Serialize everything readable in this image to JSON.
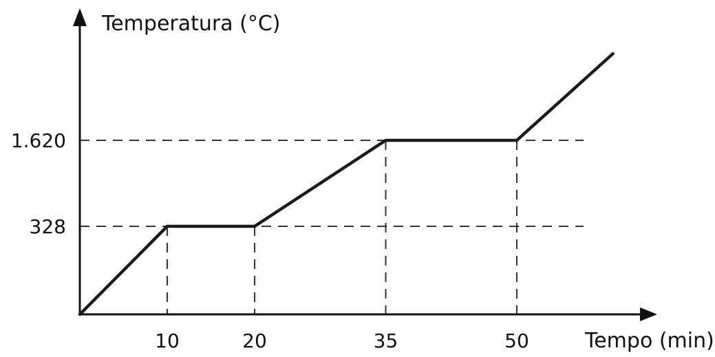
{
  "chart_data": {
    "type": "line",
    "ylabel": "Temperatura (°C)",
    "xlabel": "Tempo (min)",
    "x_ticks": [
      "10",
      "20",
      "35",
      "50"
    ],
    "y_ticks": [
      "328",
      "1.620"
    ],
    "points": [
      {
        "x": 0,
        "y": 0
      },
      {
        "x": 10,
        "y": 328
      },
      {
        "x": 20,
        "y": 328
      },
      {
        "x": 35,
        "y": 1620
      },
      {
        "x": 50,
        "y": 1620
      },
      {
        "x": 61,
        "y": 2553
      }
    ],
    "reference_lines": {
      "horizontal": [
        328,
        1620
      ],
      "vertical": [
        10,
        20,
        35,
        50
      ]
    },
    "colors": {
      "line": "#1a1a1a",
      "axis": "#111111",
      "guides": "#333333"
    },
    "grid": false,
    "legend": "none"
  }
}
